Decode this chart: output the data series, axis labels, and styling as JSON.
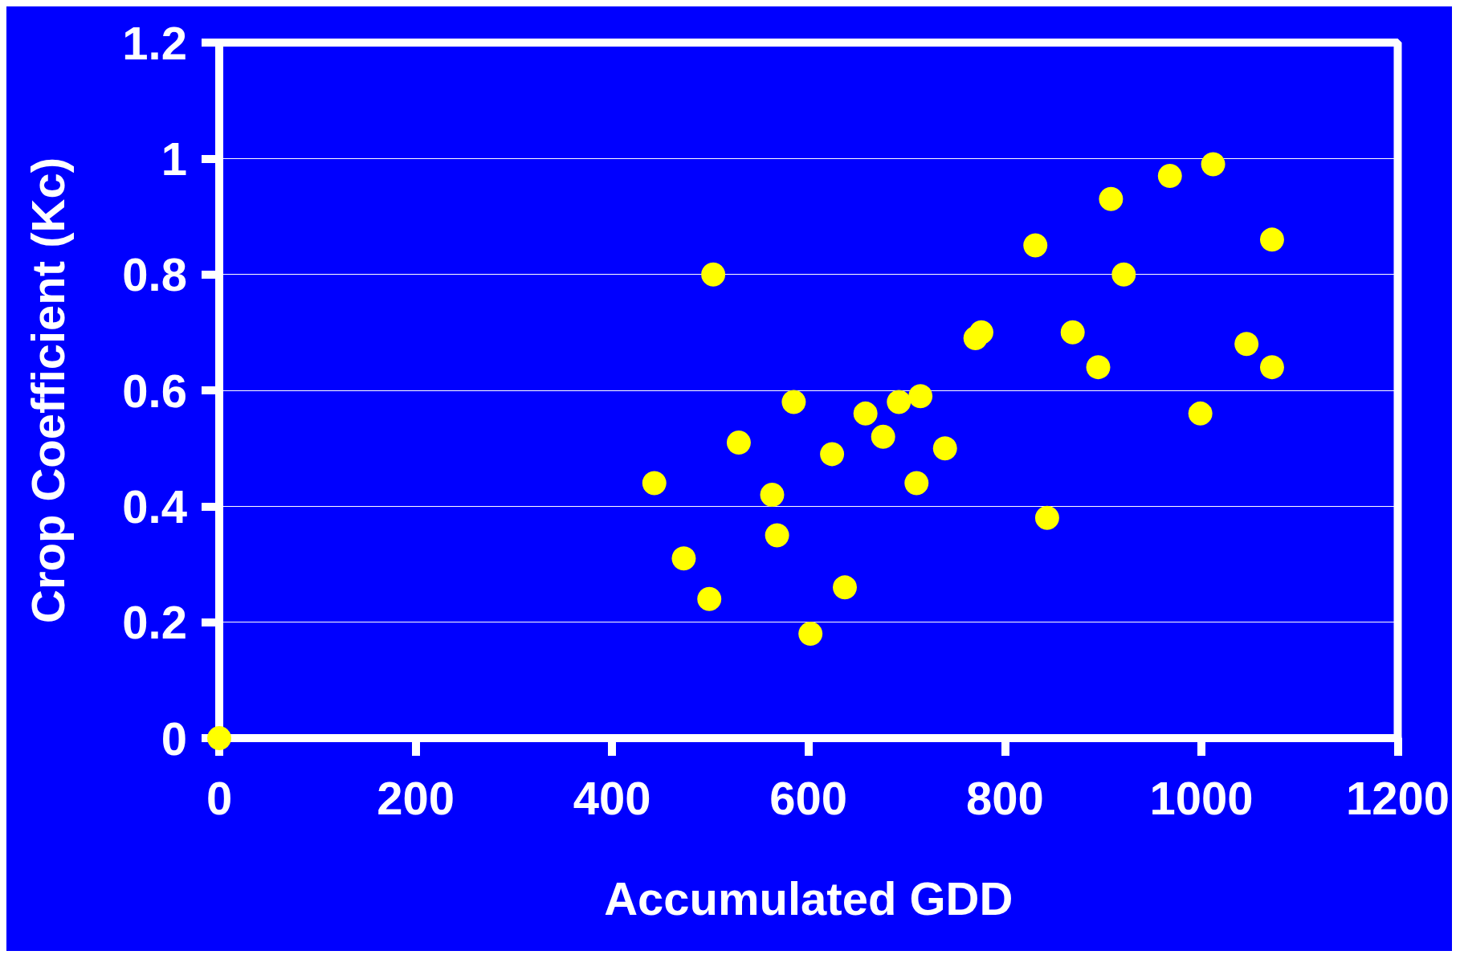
{
  "chart_data": {
    "type": "scatter",
    "xlabel": "Accumulated GDD",
    "ylabel": "Crop Coefficient (Kc)",
    "x": [
      0,
      443,
      473,
      499,
      503,
      529,
      563,
      568,
      585,
      602,
      624,
      637,
      658,
      676,
      692,
      710,
      714,
      739,
      770,
      776,
      831,
      843,
      869,
      895,
      908,
      921,
      968,
      999,
      1012,
      1046,
      1072,
      1072
    ],
    "values": [
      0,
      0.44,
      0.31,
      0.24,
      0.8,
      0.51,
      0.42,
      0.35,
      0.58,
      0.18,
      0.49,
      0.26,
      0.56,
      0.52,
      0.58,
      0.44,
      0.59,
      0.5,
      0.69,
      0.7,
      0.85,
      0.38,
      0.7,
      0.64,
      0.93,
      0.8,
      0.97,
      0.56,
      0.99,
      0.68,
      0.86,
      0.64
    ],
    "color": "#ffff00",
    "marker": "circle",
    "grid": "y",
    "xlim": [
      0,
      1200
    ],
    "xticks": [
      0,
      200,
      400,
      600,
      800,
      1000,
      1200
    ],
    "ylim": [
      0,
      1.2
    ],
    "yticks": [
      0,
      0.2,
      0.4,
      0.6,
      0.8,
      1,
      1.2
    ]
  }
}
